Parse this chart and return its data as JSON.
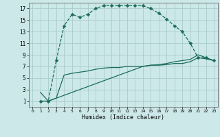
{
  "bg_color": "#cce8e8",
  "grid_color": "#aacccc",
  "line_color": "#1a6b5a",
  "xlabel": "Humidex (Indice chaleur)",
  "xlim": [
    -0.5,
    23.5
  ],
  "ylim": [
    0,
    18
  ],
  "xticks": [
    0,
    1,
    2,
    3,
    4,
    5,
    6,
    7,
    8,
    9,
    10,
    11,
    12,
    13,
    14,
    15,
    16,
    17,
    18,
    19,
    20,
    21,
    22,
    23
  ],
  "yticks": [
    1,
    3,
    5,
    7,
    9,
    11,
    13,
    15,
    17
  ],
  "curve1_x": [
    1,
    2,
    3,
    4,
    5,
    6,
    7,
    8,
    9,
    10,
    11,
    12,
    13,
    14,
    15,
    16,
    17,
    18,
    19,
    20,
    21,
    22,
    23
  ],
  "curve1_y": [
    1,
    1,
    8,
    14,
    16,
    15.5,
    16,
    17,
    17.5,
    17.5,
    17.5,
    17.5,
    17.5,
    17.5,
    17,
    16.2,
    15.2,
    14,
    13,
    11,
    8.5,
    8.5,
    8
  ],
  "curve2_x": [
    1,
    2,
    3,
    4,
    5,
    6,
    7,
    8,
    9,
    10,
    11,
    12,
    13,
    14,
    15,
    16,
    17,
    18,
    19,
    20,
    21,
    22,
    23
  ],
  "curve2_y": [
    2.5,
    1,
    1.5,
    5.5,
    5.8,
    6.0,
    6.2,
    6.5,
    6.7,
    6.8,
    6.8,
    7.0,
    7.0,
    7.0,
    7.2,
    7.2,
    7.3,
    7.5,
    7.5,
    7.8,
    8.5,
    8.3,
    8.0
  ],
  "curve3_x": [
    1,
    2,
    3,
    4,
    5,
    6,
    7,
    8,
    9,
    10,
    11,
    12,
    13,
    14,
    15,
    16,
    17,
    18,
    19,
    20,
    21,
    22,
    23
  ],
  "curve3_y": [
    1,
    1,
    1.5,
    2,
    2.5,
    3,
    3.5,
    4,
    4.5,
    5,
    5.5,
    6,
    6.5,
    7,
    7.2,
    7.3,
    7.5,
    7.8,
    8.0,
    8.2,
    9.0,
    8.5,
    8.0
  ]
}
